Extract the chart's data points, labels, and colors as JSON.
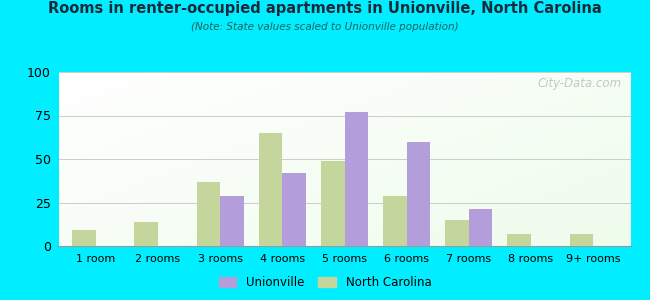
{
  "title": "Rooms in renter-occupied apartments in Unionville, North Carolina",
  "subtitle": "(Note: State values scaled to Unionville population)",
  "categories": [
    "1 room",
    "2 rooms",
    "3 rooms",
    "4 rooms",
    "5 rooms",
    "6 rooms",
    "7 rooms",
    "8 rooms",
    "9+ rooms"
  ],
  "unionville": [
    0,
    0,
    29,
    42,
    77,
    60,
    21,
    0,
    0
  ],
  "north_carolina": [
    9,
    14,
    37,
    65,
    49,
    29,
    15,
    7,
    7
  ],
  "unionville_color": "#b39ddb",
  "nc_color": "#c5d69d",
  "bg_outer": "#00eeff",
  "ylim": [
    0,
    100
  ],
  "yticks": [
    0,
    25,
    50,
    75,
    100
  ],
  "bar_width": 0.38,
  "watermark": "City-Data.com",
  "legend_unionville": "Unionville",
  "legend_nc": "North Carolina",
  "title_color": "#1a2a3a",
  "subtitle_color": "#1a6060"
}
